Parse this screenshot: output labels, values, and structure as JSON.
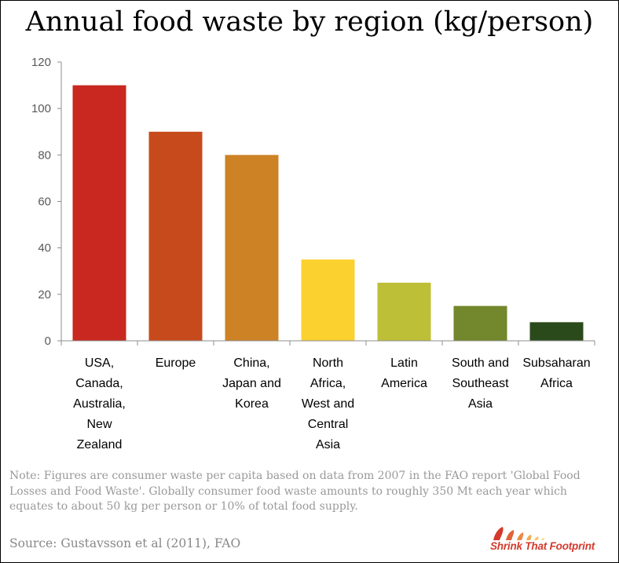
{
  "chart_data": {
    "type": "bar",
    "title": "Annual food waste by region (kg/person)",
    "xlabel": "",
    "ylabel": "",
    "ylim": [
      0,
      120
    ],
    "yticks": [
      0,
      20,
      40,
      60,
      80,
      100,
      120
    ],
    "grid": false,
    "categories": [
      [
        "USA,",
        "Canada,",
        "Australia,",
        "New",
        "Zealand"
      ],
      [
        "Europe"
      ],
      [
        "China,",
        "Japan and",
        "Korea"
      ],
      [
        "North",
        "Africa,",
        "West and",
        "Central",
        "Asia"
      ],
      [
        "Latin",
        "America"
      ],
      [
        "South and",
        "Southeast",
        "Asia"
      ],
      [
        "Subsaharan",
        "Africa"
      ]
    ],
    "values": [
      110,
      90,
      80,
      35,
      25,
      15,
      8
    ],
    "colors": [
      "#c8281f",
      "#c74a1c",
      "#ce8226",
      "#fbd12f",
      "#bdc036",
      "#73872c",
      "#2b4a1c"
    ]
  },
  "note": "Note: Figures are consumer waste per capita based on data from 2007 in the FAO report 'Global Food Losses and Food Waste'.  Globally consumer food waste amounts to roughly 350 Mt each year which equates to about 50 kg per person or 10% of total food supply.",
  "source": "Source:  Gustavsson et al (2011), FAO",
  "logo": {
    "text": "Shrink That Footprint",
    "color": "#d33a2c"
  }
}
